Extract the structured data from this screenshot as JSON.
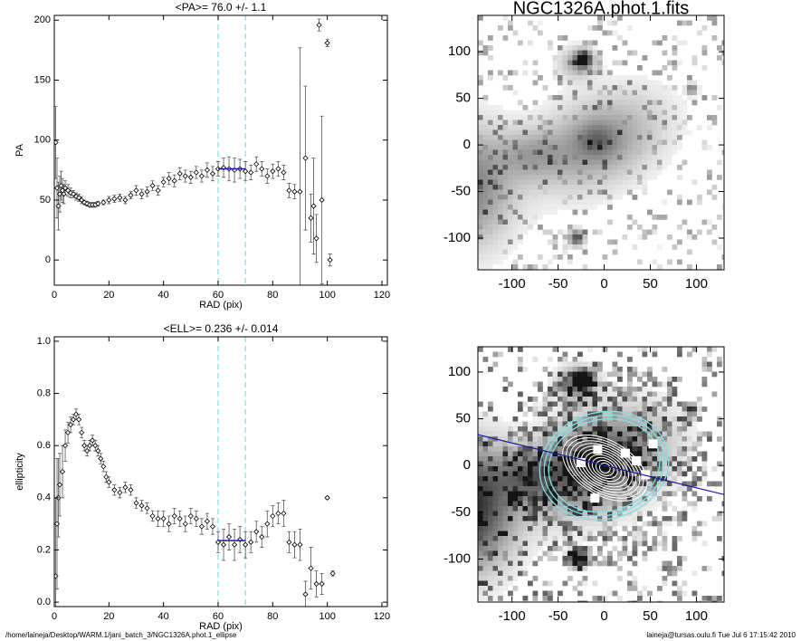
{
  "chart_data": [
    {
      "type": "scatter",
      "title": "<PA>=  76.0 +/-   1.1",
      "xlabel": "RAD (pix)",
      "ylabel": "PA",
      "x": [
        0.5,
        1,
        1.5,
        2,
        2.5,
        3,
        3.5,
        4,
        5,
        6,
        7,
        8,
        9,
        10,
        11,
        12,
        13,
        14,
        15,
        16,
        18,
        20,
        22,
        24,
        26,
        28,
        30,
        32,
        34,
        36,
        38,
        40,
        42,
        44,
        46,
        48,
        50,
        52,
        54,
        56,
        58,
        60,
        62,
        64,
        66,
        68,
        70,
        72,
        74,
        76,
        78,
        80,
        82,
        84,
        86,
        88,
        90,
        92,
        94,
        95,
        96,
        97,
        98,
        100,
        101
      ],
      "values": [
        98,
        60,
        45,
        55,
        62,
        58,
        55,
        60,
        58,
        56,
        55,
        53,
        52,
        50,
        48,
        47,
        46,
        46,
        46,
        47,
        48,
        50,
        51,
        52,
        50,
        54,
        58,
        55,
        57,
        62,
        58,
        65,
        68,
        66,
        72,
        70,
        69,
        73,
        70,
        75,
        72,
        76,
        77,
        76,
        75,
        76,
        74,
        73,
        80,
        76,
        70,
        74,
        76,
        73,
        58,
        57,
        57,
        85,
        35,
        45,
        18,
        196,
        50,
        181,
        0
      ],
      "errors": [
        30,
        25,
        20,
        15,
        12,
        10,
        8,
        6,
        5,
        4,
        3,
        3,
        3,
        3,
        2,
        2,
        2,
        2,
        2,
        2,
        2,
        3,
        3,
        3,
        3,
        3,
        4,
        4,
        4,
        4,
        4,
        4,
        5,
        5,
        5,
        5,
        5,
        5,
        5,
        6,
        6,
        6,
        8,
        10,
        10,
        8,
        8,
        6,
        6,
        6,
        6,
        6,
        6,
        6,
        6,
        6,
        120,
        60,
        20,
        40,
        20,
        5,
        70,
        3,
        5
      ],
      "color": "#000000",
      "error_color": "#555555",
      "xlim": [
        0,
        122
      ],
      "ylim": [
        -21,
        204
      ],
      "xticks": [
        0,
        20,
        40,
        60,
        80,
        100,
        120
      ],
      "yticks": [
        0,
        50,
        100,
        150,
        200
      ],
      "range_lines": [
        60,
        70
      ],
      "range_color": "#7fe0e6",
      "fit": {
        "x": [
          60,
          70
        ],
        "value": 76.0,
        "color": "#1a1aa8"
      }
    },
    {
      "type": "scatter",
      "title": "<ELL>= 0.236 +/-  0.014",
      "xlabel": "RAD (pix)",
      "ylabel": "ellipticity",
      "x": [
        0.5,
        1,
        1.5,
        2,
        3,
        4,
        5,
        6,
        7,
        8,
        9,
        10,
        11,
        12,
        13,
        14,
        15,
        16,
        17,
        18,
        19,
        20,
        22,
        24,
        26,
        28,
        30,
        32,
        34,
        36,
        38,
        40,
        42,
        44,
        46,
        48,
        50,
        52,
        54,
        56,
        58,
        60,
        62,
        64,
        66,
        68,
        70,
        72,
        74,
        76,
        78,
        80,
        82,
        84,
        86,
        88,
        90,
        92,
        94,
        96,
        98,
        100,
        102
      ],
      "values": [
        0.1,
        0.3,
        0.4,
        0.45,
        0.5,
        0.6,
        0.65,
        0.68,
        0.7,
        0.72,
        0.7,
        0.65,
        0.6,
        0.58,
        0.6,
        0.62,
        0.6,
        0.58,
        0.55,
        0.52,
        0.48,
        0.46,
        0.43,
        0.42,
        0.44,
        0.43,
        0.38,
        0.37,
        0.36,
        0.33,
        0.32,
        0.32,
        0.3,
        0.33,
        0.32,
        0.3,
        0.33,
        0.32,
        0.29,
        0.31,
        0.29,
        0.23,
        0.22,
        0.25,
        0.22,
        0.24,
        0.22,
        0.23,
        0.27,
        0.25,
        0.3,
        0.33,
        0.34,
        0.34,
        0.23,
        0.22,
        0.22,
        0.03,
        0.13,
        0.07,
        0.07,
        0.4,
        0.11
      ],
      "errors": [
        0.3,
        0.25,
        0.15,
        0.12,
        0.1,
        0.06,
        0.04,
        0.03,
        0.02,
        0.02,
        0.02,
        0.02,
        0.02,
        0.02,
        0.02,
        0.02,
        0.02,
        0.02,
        0.02,
        0.02,
        0.02,
        0.02,
        0.02,
        0.02,
        0.02,
        0.02,
        0.02,
        0.02,
        0.02,
        0.02,
        0.03,
        0.03,
        0.03,
        0.03,
        0.03,
        0.03,
        0.03,
        0.03,
        0.03,
        0.03,
        0.03,
        0.04,
        0.06,
        0.05,
        0.06,
        0.05,
        0.05,
        0.04,
        0.04,
        0.04,
        0.05,
        0.04,
        0.04,
        0.05,
        0.04,
        0.05,
        0.06,
        0.05,
        0.08,
        0.05,
        0.04,
        0.005,
        0.01
      ],
      "color": "#000000",
      "error_color": "#555555",
      "xlim": [
        0,
        122
      ],
      "ylim": [
        -0.017,
        1.017
      ],
      "xticks": [
        0,
        20,
        40,
        60,
        80,
        100,
        120
      ],
      "yticks": [
        {
          "value": 0,
          "label": "0.0"
        },
        0.2,
        0.4,
        0.6,
        0.8,
        {
          "value": 1,
          "label": "1.0"
        }
      ],
      "range_lines": [
        60,
        70
      ],
      "range_color": "#7fe0e6",
      "fit": {
        "x": [
          60,
          70
        ],
        "value": 0.236,
        "color": "#1a1aa8"
      }
    },
    {
      "type": "image",
      "title": "NGC1326A.phot.1.fits",
      "xlim": [
        -137,
        130
      ],
      "ylim": [
        -134,
        139
      ],
      "xticks": [
        -100,
        -50,
        0,
        50,
        100
      ],
      "yticks": [
        -100,
        -50,
        0,
        50,
        100
      ]
    },
    {
      "type": "image",
      "xlim": [
        -137,
        130
      ],
      "ylim": [
        -146,
        127
      ],
      "xticks": [
        -100,
        -50,
        0,
        50,
        100
      ],
      "yticks": [
        -100,
        -50,
        0,
        50,
        100
      ],
      "overlay": true
    }
  ],
  "footer": {
    "left": "/home/laineja/Desktop/WARM.1/jani_batch_3/NGC1326A.phot.1_ellipse",
    "right": "laineja@tursas.oulu.fi  Tue Jul  6 17:15:42 2010"
  }
}
